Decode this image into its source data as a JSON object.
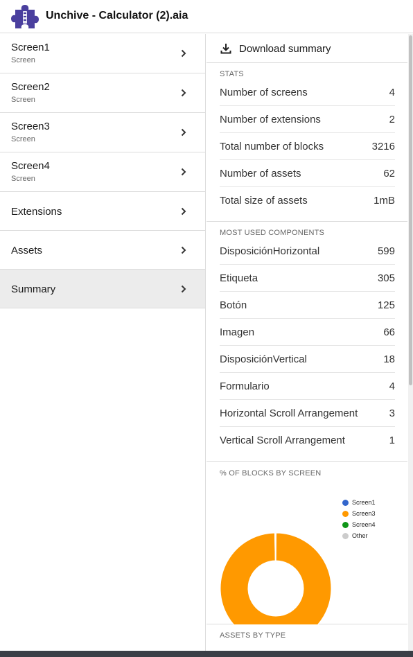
{
  "app": {
    "title": "Unchive - Calculator (2).aia",
    "logo_icon": "puzzle-piece-icon",
    "logo_color": "#4a3f9e"
  },
  "sidebar": {
    "items": [
      {
        "label": "Screen1",
        "sub": "Screen"
      },
      {
        "label": "Screen2",
        "sub": "Screen"
      },
      {
        "label": "Screen3",
        "sub": "Screen"
      },
      {
        "label": "Screen4",
        "sub": "Screen"
      },
      {
        "label": "Extensions",
        "sub": ""
      },
      {
        "label": "Assets",
        "sub": ""
      },
      {
        "label": "Summary",
        "sub": "",
        "active": true
      }
    ]
  },
  "main": {
    "download_label": "Download summary",
    "stats": {
      "title": "STATS",
      "rows": [
        {
          "label": "Number of screens",
          "value": "4"
        },
        {
          "label": "Number of extensions",
          "value": "2"
        },
        {
          "label": "Total number of blocks",
          "value": "3216"
        },
        {
          "label": "Number of assets",
          "value": "62"
        },
        {
          "label": "Total size of assets",
          "value": "1mB"
        }
      ]
    },
    "components": {
      "title": "MOST USED COMPONENTS",
      "rows": [
        {
          "label": "DisposiciónHorizontal",
          "value": "599"
        },
        {
          "label": "Etiqueta",
          "value": "305"
        },
        {
          "label": "Botón",
          "value": "125"
        },
        {
          "label": "Imagen",
          "value": "66"
        },
        {
          "label": "DisposiciónVertical",
          "value": "18"
        },
        {
          "label": "Formulario",
          "value": "4"
        },
        {
          "label": "Horizontal Scroll Arrangement",
          "value": "3"
        },
        {
          "label": "Vertical Scroll Arrangement",
          "value": "1"
        }
      ]
    },
    "blocks_chart_title": "% OF BLOCKS BY SCREEN",
    "assets_title": "ASSETS BY TYPE"
  },
  "chart_data": {
    "type": "pie",
    "title": "% OF BLOCKS BY SCREEN",
    "legend_position": "right",
    "series": [
      {
        "name": "Screen1",
        "value": 0.1,
        "color": "#3366cc"
      },
      {
        "name": "Screen3",
        "value": 99.6,
        "color": "#ff9900"
      },
      {
        "name": "Screen4",
        "value": 0.2,
        "color": "#109618"
      },
      {
        "name": "Other",
        "value": 0.1,
        "color": "#cccccc"
      }
    ],
    "slice_labels": [
      {
        "series": "Screen3",
        "text": "99.6%"
      }
    ]
  }
}
